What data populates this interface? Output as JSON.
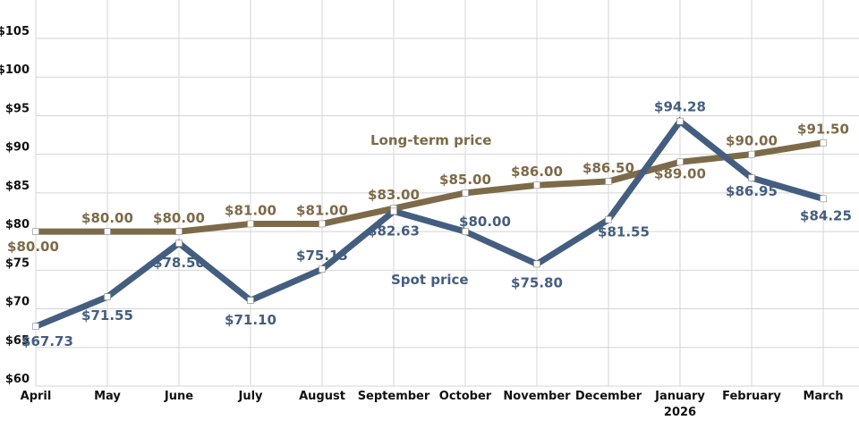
{
  "chart_data": {
    "type": "line",
    "title": "",
    "xlabel": "",
    "ylabel": "",
    "categories": [
      "April",
      "May",
      "June",
      "July",
      "August",
      "September",
      "October",
      "November",
      "December",
      "January",
      "February",
      "March"
    ],
    "category_sublabels": {
      "January": "2026"
    },
    "ylim": [
      60,
      105
    ],
    "ytick_step": 5,
    "ytick_labels": [
      "$60",
      "$65",
      "$70",
      "$75",
      "$80",
      "$85",
      "$90",
      "$95",
      "$100",
      "$105"
    ],
    "grid": true,
    "legend": "inline labels",
    "series": [
      {
        "name": "Long-term price",
        "color": "#7d6a48",
        "values": [
          80.0,
          80.0,
          80.0,
          81.0,
          81.0,
          83.0,
          85.0,
          86.0,
          86.5,
          89.0,
          90.0,
          91.5
        ],
        "labels": [
          "$80.00",
          "$80.00",
          "$80.00",
          "$81.00",
          "$81.00",
          "$83.00",
          "$85.00",
          "$86.00",
          "$86.50",
          "$89.00",
          "$90.00",
          "$91.50"
        ]
      },
      {
        "name": "Spot price",
        "color": "#445e80",
        "values": [
          67.73,
          71.55,
          78.5,
          71.1,
          75.13,
          82.63,
          80.0,
          75.8,
          81.55,
          94.28,
          86.95,
          84.25
        ],
        "labels": [
          "$67.73",
          "$71.55",
          "$78.50",
          "$71.10",
          "$75.13",
          "$82.63",
          "$80.00",
          "$75.80",
          "$81.55",
          "$94.28",
          "$86.95",
          "$84.25"
        ]
      }
    ]
  }
}
